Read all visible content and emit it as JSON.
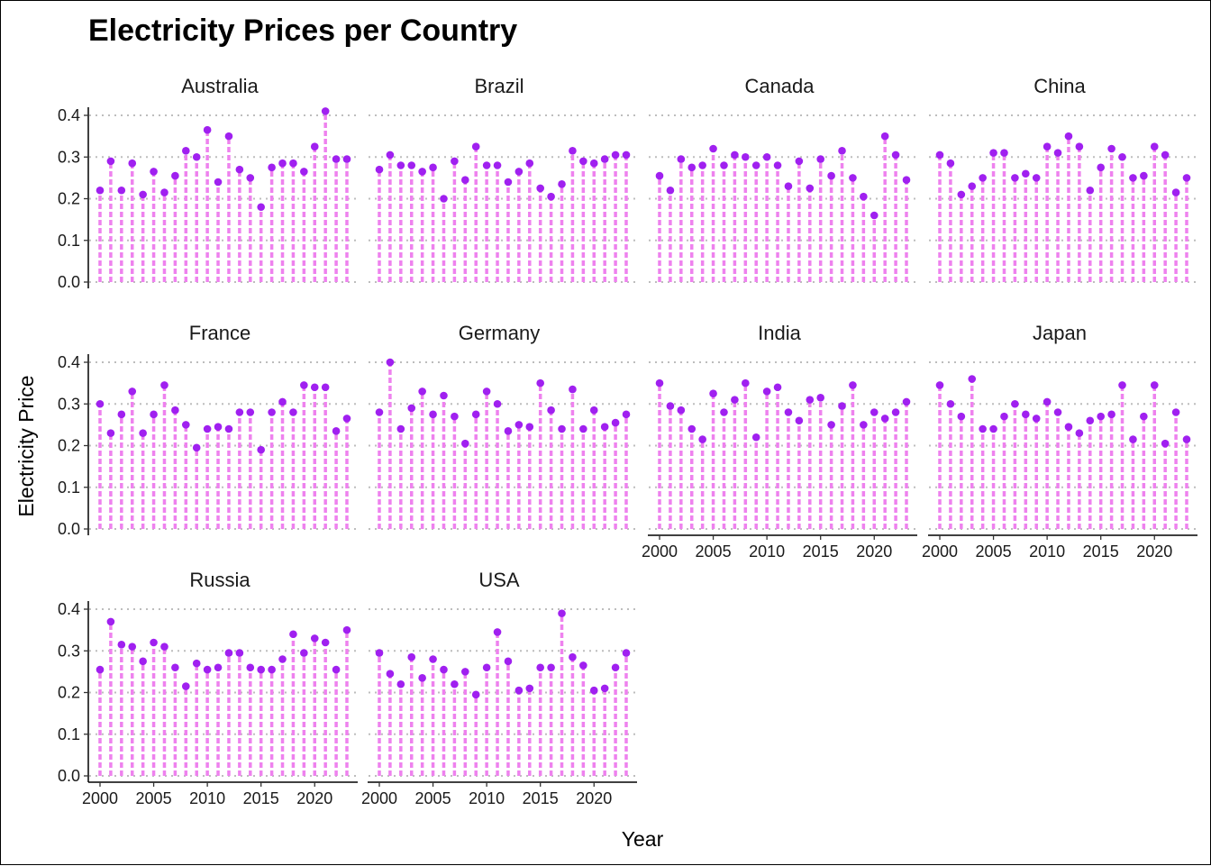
{
  "chart_data": {
    "type": "scatter",
    "title": "Electricity Prices per Country",
    "xlabel": "Year",
    "ylabel": "Electricity Price",
    "ylim": [
      0,
      0.4
    ],
    "y_ticks": [
      "0.0",
      "0.1",
      "0.2",
      "0.3",
      "0.4"
    ],
    "x_ticks": [
      "2000",
      "2005",
      "2010",
      "2015",
      "2020"
    ],
    "years": [
      2000,
      2001,
      2002,
      2003,
      2004,
      2005,
      2006,
      2007,
      2008,
      2009,
      2010,
      2011,
      2012,
      2013,
      2014,
      2015,
      2016,
      2017,
      2018,
      2019,
      2020,
      2021,
      2022,
      2023
    ],
    "grid": "horizontal dotted",
    "point_color": "#A020F0",
    "segment_color": "#EE82EE",
    "panels": [
      {
        "name": "Australia",
        "values": [
          0.22,
          0.29,
          0.22,
          0.285,
          0.21,
          0.265,
          0.215,
          0.255,
          0.315,
          0.3,
          0.365,
          0.24,
          0.35,
          0.27,
          0.25,
          0.18,
          0.275,
          0.285,
          0.285,
          0.265,
          0.325,
          0.41,
          0.295,
          0.295
        ]
      },
      {
        "name": "Brazil",
        "values": [
          0.27,
          0.305,
          0.28,
          0.28,
          0.265,
          0.275,
          0.2,
          0.29,
          0.245,
          0.325,
          0.28,
          0.28,
          0.24,
          0.265,
          0.285,
          0.225,
          0.205,
          0.235,
          0.315,
          0.29,
          0.285,
          0.295,
          0.305,
          0.305
        ]
      },
      {
        "name": "Canada",
        "values": [
          0.255,
          0.22,
          0.295,
          0.275,
          0.28,
          0.32,
          0.28,
          0.305,
          0.3,
          0.28,
          0.3,
          0.28,
          0.23,
          0.29,
          0.225,
          0.295,
          0.255,
          0.315,
          0.25,
          0.205,
          0.16,
          0.35,
          0.305,
          0.245
        ]
      },
      {
        "name": "China",
        "values": [
          0.305,
          0.285,
          0.21,
          0.23,
          0.25,
          0.31,
          0.31,
          0.25,
          0.26,
          0.25,
          0.325,
          0.31,
          0.35,
          0.325,
          0.22,
          0.275,
          0.32,
          0.3,
          0.25,
          0.255,
          0.325,
          0.305,
          0.215,
          0.25
        ]
      },
      {
        "name": "France",
        "values": [
          0.3,
          0.23,
          0.275,
          0.33,
          0.23,
          0.275,
          0.345,
          0.285,
          0.25,
          0.195,
          0.24,
          0.245,
          0.24,
          0.28,
          0.28,
          0.19,
          0.28,
          0.305,
          0.28,
          0.345,
          0.34,
          0.34,
          0.235,
          0.265
        ]
      },
      {
        "name": "Germany",
        "values": [
          0.28,
          0.4,
          0.24,
          0.29,
          0.33,
          0.275,
          0.32,
          0.27,
          0.205,
          0.275,
          0.33,
          0.3,
          0.235,
          0.25,
          0.245,
          0.35,
          0.285,
          0.24,
          0.335,
          0.24,
          0.285,
          0.245,
          0.255,
          0.275
        ]
      },
      {
        "name": "India",
        "values": [
          0.35,
          0.295,
          0.285,
          0.24,
          0.215,
          0.325,
          0.28,
          0.31,
          0.35,
          0.22,
          0.33,
          0.34,
          0.28,
          0.26,
          0.31,
          0.315,
          0.25,
          0.295,
          0.345,
          0.25,
          0.28,
          0.265,
          0.28,
          0.305
        ]
      },
      {
        "name": "Japan",
        "values": [
          0.345,
          0.3,
          0.27,
          0.36,
          0.24,
          0.24,
          0.27,
          0.3,
          0.275,
          0.265,
          0.305,
          0.28,
          0.245,
          0.23,
          0.26,
          0.27,
          0.275,
          0.345,
          0.215,
          0.27,
          0.345,
          0.205,
          0.28,
          0.215
        ]
      },
      {
        "name": "Russia",
        "values": [
          0.255,
          0.37,
          0.315,
          0.31,
          0.275,
          0.32,
          0.31,
          0.26,
          0.215,
          0.27,
          0.255,
          0.26,
          0.295,
          0.295,
          0.26,
          0.255,
          0.255,
          0.28,
          0.34,
          0.295,
          0.33,
          0.32,
          0.255,
          0.35
        ]
      },
      {
        "name": "USA",
        "values": [
          0.295,
          0.245,
          0.22,
          0.285,
          0.235,
          0.28,
          0.255,
          0.22,
          0.25,
          0.195,
          0.26,
          0.345,
          0.275,
          0.205,
          0.21,
          0.26,
          0.26,
          0.39,
          0.285,
          0.265,
          0.205,
          0.21,
          0.26,
          0.295
        ]
      }
    ]
  }
}
